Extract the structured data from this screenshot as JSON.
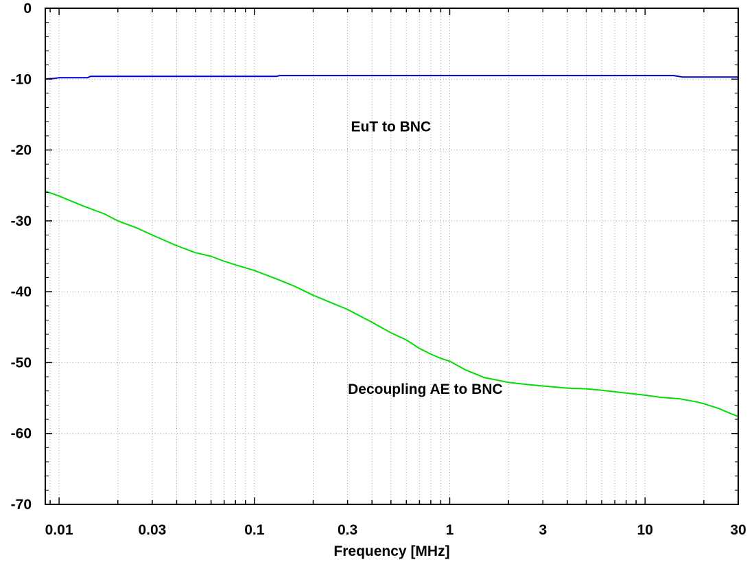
{
  "chart_data": {
    "type": "line",
    "xlabel": "Frequency [MHz]",
    "ylabel": "",
    "x_scale": "log",
    "xlim": [
      0.0085,
      30
    ],
    "ylim": [
      -70,
      0
    ],
    "grid": true,
    "x_tick_labels": [
      {
        "value": 0.01,
        "label": "0.01"
      },
      {
        "value": 0.03,
        "label": "0.03"
      },
      {
        "value": 0.1,
        "label": "0.1"
      },
      {
        "value": 0.3,
        "label": "0.3"
      },
      {
        "value": 1,
        "label": "1"
      },
      {
        "value": 3,
        "label": "3"
      },
      {
        "value": 10,
        "label": "10"
      },
      {
        "value": 30,
        "label": "30"
      }
    ],
    "y_tick_labels": [
      {
        "value": 0,
        "label": "0"
      },
      {
        "value": -10,
        "label": "-10"
      },
      {
        "value": -20,
        "label": "-20"
      },
      {
        "value": -30,
        "label": "-30"
      },
      {
        "value": -40,
        "label": "-40"
      },
      {
        "value": -50,
        "label": "-50"
      },
      {
        "value": -60,
        "label": "-60"
      },
      {
        "value": -70,
        "label": "-70"
      }
    ],
    "series": [
      {
        "name": "EuT to BNC",
        "color": "#0000cc",
        "points": [
          [
            0.0085,
            -10.0
          ],
          [
            0.0095,
            -9.9
          ],
          [
            0.01,
            -9.8
          ],
          [
            0.014,
            -9.8
          ],
          [
            0.0145,
            -9.6
          ],
          [
            0.13,
            -9.6
          ],
          [
            0.135,
            -9.5
          ],
          [
            14,
            -9.5
          ],
          [
            15.5,
            -9.7
          ],
          [
            30,
            -9.7
          ]
        ]
      },
      {
        "name": "Decoupling AE to BNC",
        "color": "#00dd00",
        "points": [
          [
            0.0085,
            -25.8
          ],
          [
            0.01,
            -26.5
          ],
          [
            0.013,
            -27.8
          ],
          [
            0.017,
            -29.0
          ],
          [
            0.02,
            -30.0
          ],
          [
            0.025,
            -31.0
          ],
          [
            0.03,
            -32.0
          ],
          [
            0.04,
            -33.5
          ],
          [
            0.05,
            -34.5
          ],
          [
            0.06,
            -35.0
          ],
          [
            0.07,
            -35.7
          ],
          [
            0.08,
            -36.2
          ],
          [
            0.1,
            -37.0
          ],
          [
            0.13,
            -38.2
          ],
          [
            0.16,
            -39.2
          ],
          [
            0.2,
            -40.5
          ],
          [
            0.25,
            -41.6
          ],
          [
            0.3,
            -42.5
          ],
          [
            0.4,
            -44.3
          ],
          [
            0.5,
            -45.8
          ],
          [
            0.6,
            -46.8
          ],
          [
            0.7,
            -48.0
          ],
          [
            0.8,
            -48.8
          ],
          [
            0.9,
            -49.4
          ],
          [
            1.0,
            -49.8
          ],
          [
            1.2,
            -51.0
          ],
          [
            1.5,
            -52.1
          ],
          [
            2.0,
            -52.8
          ],
          [
            2.5,
            -53.1
          ],
          [
            3.0,
            -53.3
          ],
          [
            4.0,
            -53.6
          ],
          [
            5.0,
            -53.7
          ],
          [
            6.0,
            -53.9
          ],
          [
            8.0,
            -54.3
          ],
          [
            10.0,
            -54.6
          ],
          [
            12.0,
            -54.9
          ],
          [
            15.0,
            -55.1
          ],
          [
            18.0,
            -55.5
          ],
          [
            20.0,
            -55.8
          ],
          [
            24.0,
            -56.5
          ],
          [
            27.0,
            -57.1
          ],
          [
            30.0,
            -57.6
          ]
        ]
      }
    ],
    "annotations": [
      {
        "text": "EuT to BNC",
        "x": 0.5,
        "y": -17.4
      },
      {
        "text": "Decoupling AE to BNC",
        "x": 0.75,
        "y": -54.4
      }
    ]
  }
}
